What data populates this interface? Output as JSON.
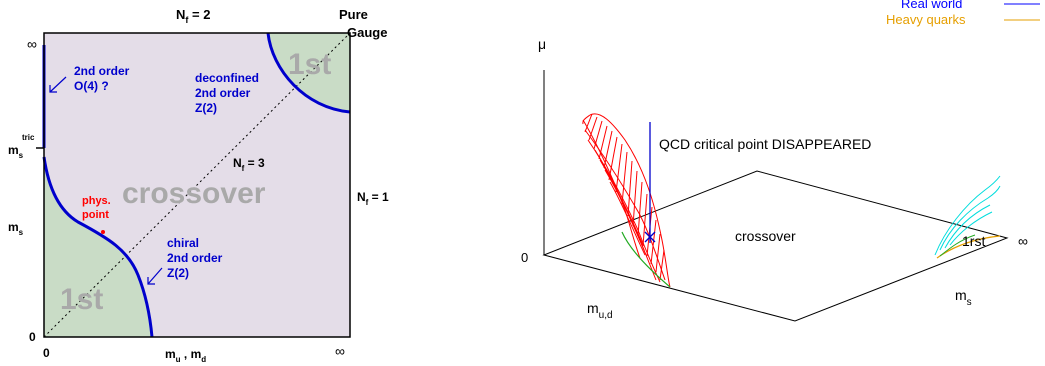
{
  "left_diagram": {
    "top_label_nf": "N",
    "top_label_nf_sub": "f",
    "top_label_nf_val": " = 2",
    "pure_gauge_line1": "Pure",
    "pure_gauge_line2": "Gauge",
    "axis_inf_top": "∞",
    "axis_inf_bottom": "∞",
    "axis_zero_left": "0",
    "axis_zero_bottom": "0",
    "ms_tric_base": "m",
    "ms_tric_sub": "s",
    "ms_tric_sup": "tric",
    "ms_base": "m",
    "ms_sub": "s",
    "xaxis_m": "m",
    "xaxis_u": "u",
    "xaxis_sep": " , m",
    "xaxis_d": "d",
    "nf3_base": "N",
    "nf3_sub": "f",
    "nf3_val": " = 3",
    "nf1_base": "N",
    "nf1_sub": "f",
    "nf1_val": " = 1",
    "crossover": "crossover",
    "first_order_top": "1st",
    "first_order_bottom": "1st",
    "o4_line1": "2nd order",
    "o4_line2": "O(4) ?",
    "deconf_line1": "deconfined",
    "deconf_line2": "2nd order",
    "deconf_line3": "Z(2)",
    "chiral_line1": "chiral",
    "chiral_line2": "2nd order",
    "chiral_line3": "Z(2)",
    "phys_line1": "phys.",
    "phys_line2": "point",
    "colors": {
      "region_fill": "#e4dde8",
      "first_order_fill": "#c9dcc6",
      "critical_line": "#0000cc",
      "phys_point": "#ff0000",
      "big_label": "#a9a9a9"
    }
  },
  "right_diagram": {
    "mu_label": "μ",
    "zero_label": "0",
    "legend_real_world": "Real world",
    "legend_heavy_quarks": "Heavy quarks",
    "qcd_label": "QCD critical point DISAPPEARED",
    "crossover": "crossover",
    "first_rst": "1rst",
    "inf": "∞",
    "ms_base": "m",
    "ms_sub": "s",
    "mud_base": "m",
    "mud_sub": "u,d",
    "colors": {
      "real_world": "#0000ff",
      "heavy_quarks": "#e69f00",
      "surface": "#ff0000",
      "surface_edge": "#22aa22",
      "cyan": "#00dddd"
    }
  }
}
